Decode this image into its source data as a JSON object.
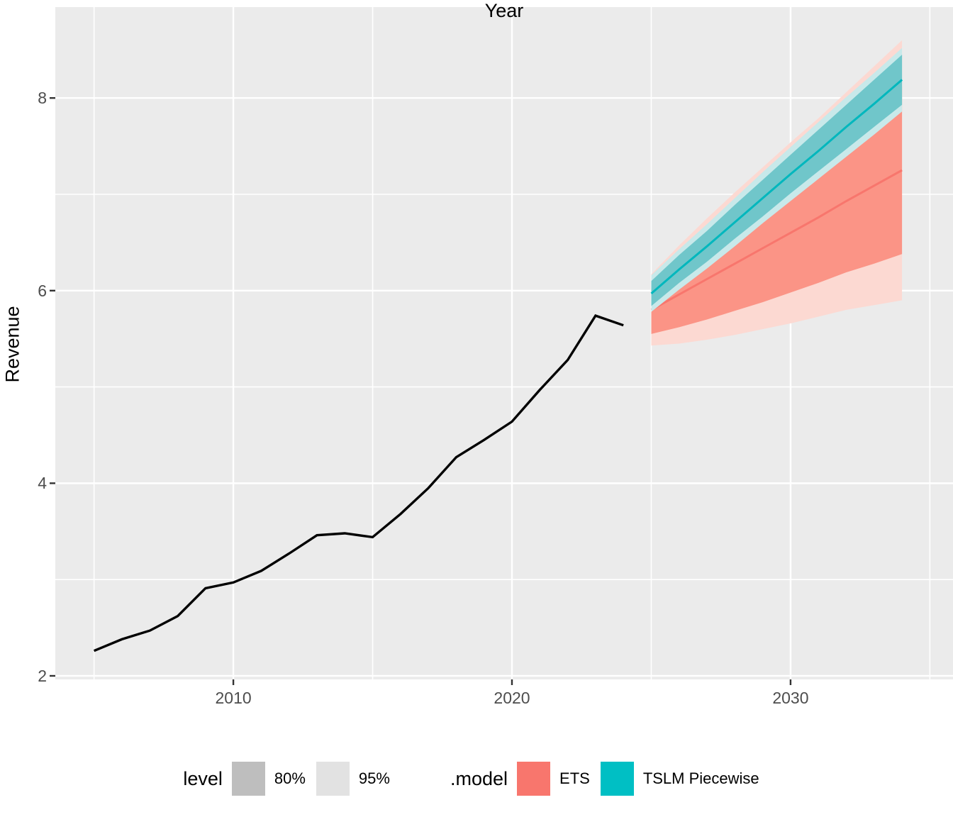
{
  "chart_data": {
    "type": "line",
    "title": "",
    "xlabel": "Year",
    "ylabel": "Revenue",
    "xlim": [
      2003.61,
      2035.83
    ],
    "ylim": [
      1.963,
      8.944
    ],
    "x_ticks": [
      2010,
      2020,
      2030
    ],
    "y_ticks": [
      2,
      4,
      6,
      8
    ],
    "x_minor": [
      2005,
      2015,
      2025,
      2035
    ],
    "y_minor": [
      3,
      5,
      7
    ],
    "grid": true,
    "legend_position": "bottom",
    "colors": {
      "panel_background": "#EBEBEB",
      "gridline": "#FFFFFF",
      "tick_text": "#4D4D4D",
      "tick_mark": "#333333",
      "axis_title": "#000000",
      "historical_line": "#000000"
    },
    "historical": {
      "name": "observed",
      "color": "#000000",
      "x": [
        2005,
        2006,
        2007,
        2008,
        2009,
        2010,
        2011,
        2012,
        2013,
        2014,
        2015,
        2016,
        2017,
        2018,
        2019,
        2020,
        2021,
        2022,
        2023,
        2024
      ],
      "y": [
        2.26,
        2.38,
        2.47,
        2.62,
        2.91,
        2.97,
        3.09,
        3.27,
        3.46,
        3.48,
        3.44,
        3.68,
        3.95,
        4.27,
        4.45,
        4.64,
        4.97,
        5.28,
        5.74,
        5.64
      ]
    },
    "forecasts": [
      {
        "name": "ETS",
        "line_color": "#F8766D",
        "fill80": "#FB9486",
        "fill95": "#FCD9D2",
        "x": [
          2025,
          2026,
          2027,
          2028,
          2029,
          2030,
          2031,
          2032,
          2033,
          2034
        ],
        "mean": [
          5.8,
          5.96,
          6.12,
          6.28,
          6.44,
          6.6,
          6.76,
          6.93,
          7.09,
          7.25
        ],
        "lo80": [
          5.55,
          5.62,
          5.7,
          5.79,
          5.88,
          5.98,
          6.08,
          6.19,
          6.28,
          6.38
        ],
        "hi80": [
          6.05,
          6.3,
          6.54,
          6.77,
          7.0,
          7.22,
          7.44,
          7.67,
          7.9,
          8.12
        ],
        "lo95": [
          5.43,
          5.45,
          5.49,
          5.54,
          5.6,
          5.66,
          5.73,
          5.8,
          5.85,
          5.9
        ],
        "hi95": [
          6.17,
          6.47,
          6.75,
          7.02,
          7.28,
          7.54,
          7.79,
          8.06,
          8.33,
          8.6
        ]
      },
      {
        "name": "TSLM Piecewise",
        "line_color": "#00B7BD",
        "fill80": "#70C6CA",
        "fill95": "#C8E9EA",
        "x": [
          2025,
          2026,
          2027,
          2028,
          2029,
          2030,
          2031,
          2032,
          2033,
          2034
        ],
        "mean": [
          5.97,
          6.22,
          6.46,
          6.71,
          6.96,
          7.21,
          7.45,
          7.7,
          7.94,
          8.19
        ],
        "lo80": [
          5.84,
          6.08,
          6.3,
          6.54,
          6.77,
          7.01,
          7.24,
          7.47,
          7.7,
          7.93
        ],
        "hi80": [
          6.1,
          6.37,
          6.62,
          6.89,
          7.15,
          7.41,
          7.67,
          7.93,
          8.19,
          8.45
        ],
        "lo95": [
          5.78,
          6.01,
          6.23,
          6.46,
          6.7,
          6.93,
          7.16,
          7.39,
          7.62,
          7.86
        ],
        "hi95": [
          6.16,
          6.43,
          6.69,
          6.96,
          7.23,
          7.49,
          7.75,
          8.01,
          8.26,
          8.52
        ]
      }
    ],
    "legend": {
      "level_title": "level",
      "levels": [
        {
          "label": "80%",
          "color": "#BEBEBE"
        },
        {
          "label": "95%",
          "color": "#E2E2E2"
        }
      ],
      "model_title": ".model",
      "models": [
        {
          "label": "ETS",
          "color": "#F8766D"
        },
        {
          "label": "TSLM Piecewise",
          "color": "#00BFC4"
        }
      ]
    }
  }
}
